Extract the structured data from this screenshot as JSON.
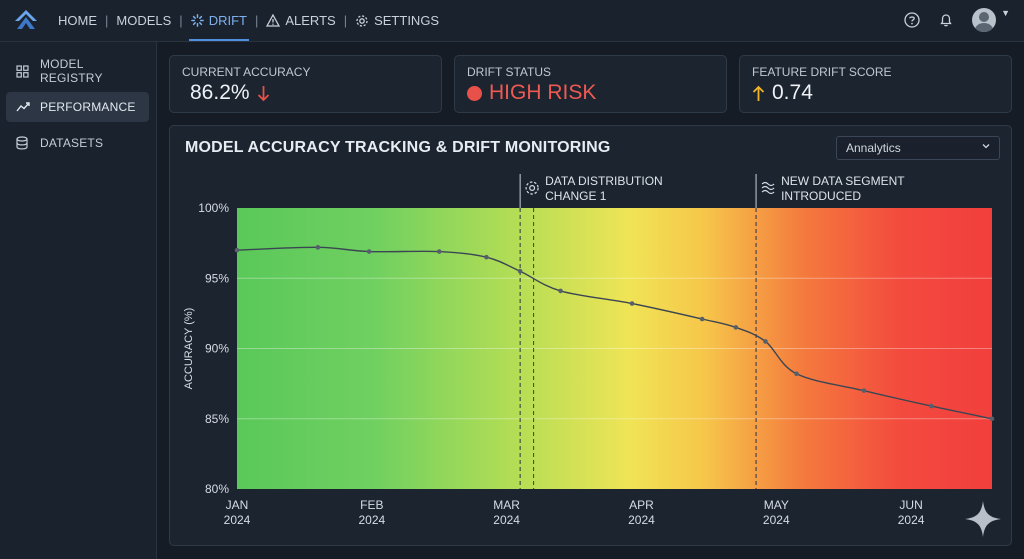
{
  "nav": {
    "home": "HOME",
    "models": "MODELS",
    "drift": "DRIFT",
    "alerts": "ALERTS",
    "settings": "SETTINGS",
    "separator": "|"
  },
  "sidebar": {
    "items": [
      {
        "label": "MODEL REGISTRY",
        "icon": "grid-icon"
      },
      {
        "label": "PERFORMANCE",
        "icon": "trend-icon"
      },
      {
        "label": "DATASETS",
        "icon": "database-icon"
      }
    ]
  },
  "cards": {
    "accuracy": {
      "label": "CURRENT ACCURACY",
      "value": "86.2%"
    },
    "drift": {
      "label": "DRIFT STATUS",
      "value": "HIGH RISK"
    },
    "score": {
      "label": "FEATURE DRIFT SCORE",
      "value": "0.74"
    }
  },
  "panel": {
    "title": "MODEL ACCURACY TRACKING & DRIFT MONITORING",
    "dropdown": "Annalytics"
  },
  "colors": {
    "accent": "#4e8fe0",
    "risk": "#e8504a",
    "down_arrow": "#e8504a",
    "up_arrow": "#f0b429"
  },
  "chart_data": {
    "type": "line",
    "title": "",
    "ylabel": "ACCURACY (%)",
    "xlabel": "",
    "ylim": [
      80,
      100
    ],
    "yticks": [
      {
        "v": 100,
        "label": "100%"
      },
      {
        "v": 95,
        "label": "95%"
      },
      {
        "v": 90,
        "label": "90%"
      },
      {
        "v": 85,
        "label": "85%"
      },
      {
        "v": 80,
        "label": "80%"
      }
    ],
    "xticks": [
      {
        "x": 0,
        "month": "JAN",
        "year": "2024"
      },
      {
        "x": 1,
        "month": "FEB",
        "year": "2024"
      },
      {
        "x": 2,
        "month": "MAR",
        "year": "2024"
      },
      {
        "x": 3,
        "month": "APR",
        "year": "2024"
      },
      {
        "x": 4,
        "month": "MAY",
        "year": "2024"
      },
      {
        "x": 5,
        "month": "JUN",
        "year": "2024"
      }
    ],
    "xlim": [
      0,
      5.6
    ],
    "series": [
      {
        "points": [
          [
            0.0,
            97.0
          ],
          [
            0.6,
            97.2
          ],
          [
            0.98,
            96.9
          ],
          [
            1.5,
            96.9
          ],
          [
            1.85,
            96.5
          ],
          [
            2.1,
            95.5
          ],
          [
            2.4,
            94.1
          ],
          [
            2.93,
            93.2
          ],
          [
            3.45,
            92.1
          ],
          [
            3.7,
            91.5
          ],
          [
            3.92,
            90.5
          ],
          [
            4.15,
            88.2
          ],
          [
            4.65,
            87.0
          ],
          [
            5.15,
            85.9
          ],
          [
            5.6,
            85.0
          ]
        ]
      }
    ],
    "annotations": [
      {
        "x": 2.1,
        "lines": [
          "DATA DISTRIBUTION",
          "CHANGE 1"
        ],
        "icon": "gear-icon"
      },
      {
        "x": 3.85,
        "lines": [
          "NEW DATA SEGMENT",
          "INTRODUCED"
        ],
        "icon": "waves-icon"
      }
    ],
    "extra_dashed_x": [
      2.2
    ],
    "background": "gradient green-yellow-red"
  }
}
